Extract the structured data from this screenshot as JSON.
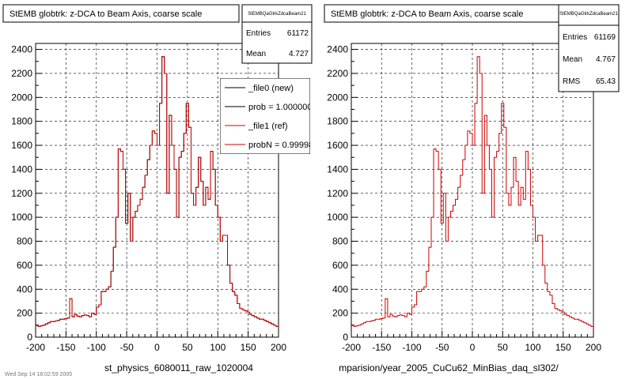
{
  "footer": "Wed Sep 14 18:02:59 2005",
  "chart_data": [
    {
      "type": "histogram",
      "title": "StEMB globtrk: z-DCA to Beam Axis, coarse scale",
      "xlabel": "st_physics_6080011_raw_1020004",
      "xlim": [
        -200,
        200
      ],
      "ylim": [
        0,
        2450
      ],
      "xticks": [
        -200,
        -150,
        -100,
        -50,
        0,
        50,
        100,
        150,
        200
      ],
      "yticks": [
        0,
        200,
        400,
        600,
        800,
        1000,
        1200,
        1400,
        1600,
        1800,
        2000,
        2200,
        2400
      ],
      "grid": true,
      "stats": {
        "name": "StEMBQaGtrkZdcaBeam21",
        "rows": [
          {
            "label": "Entries",
            "value": "61172"
          },
          {
            "label": "Mean",
            "value": "4.727"
          }
        ]
      },
      "legend": {
        "placement": "top-right",
        "entries": [
          {
            "label": "_file0 (new)",
            "color": "#000000"
          },
          {
            "label": "prob = 1.000000",
            "color": "#000000"
          },
          {
            "label": "_file1 (ref)",
            "color": "#cc0000"
          },
          {
            "label": "probN = 0.99998",
            "color": "#cc0000"
          }
        ]
      },
      "series": [
        {
          "color": "#000000",
          "width": 1,
          "values": [
            100,
            90,
            95,
            100,
            110,
            120,
            130,
            130,
            135,
            140,
            150,
            150,
            155,
            160,
            320,
            170,
            190,
            175,
            170,
            180,
            185,
            180,
            170,
            200,
            190,
            250,
            270,
            380,
            380,
            400,
            420,
            550,
            750,
            1000,
            1570,
            1550,
            1400,
            950,
            1200,
            800,
            1000,
            1050,
            1100,
            1150,
            1250,
            1350,
            1480,
            1600,
            1720,
            1700,
            1600,
            1950,
            2340,
            2200,
            1200,
            1850,
            1600,
            1400,
            1000,
            1500,
            1550,
            1700,
            1950,
            1750,
            1200,
            1100,
            1250,
            1500,
            1300,
            1100,
            1250,
            1150,
            1550,
            1400,
            1100,
            1000,
            800,
            850,
            850,
            600,
            450,
            380,
            350,
            280,
            240,
            230,
            220,
            210,
            190,
            180,
            170,
            160,
            150,
            150,
            140,
            130,
            120,
            110,
            100,
            90
          ]
        },
        {
          "color": "#cc0000",
          "width": 1,
          "values": [
            100,
            90,
            95,
            100,
            110,
            120,
            130,
            130,
            135,
            140,
            150,
            150,
            155,
            160,
            320,
            170,
            190,
            175,
            170,
            180,
            185,
            180,
            170,
            200,
            190,
            250,
            270,
            380,
            380,
            400,
            420,
            550,
            750,
            1000,
            1570,
            1550,
            1400,
            950,
            1200,
            800,
            1000,
            1050,
            1100,
            1150,
            1250,
            1350,
            1480,
            1600,
            1720,
            1700,
            1600,
            1950,
            2340,
            2200,
            1200,
            1850,
            1600,
            1400,
            1000,
            1500,
            1550,
            1700,
            1950,
            1750,
            1200,
            1100,
            1250,
            1500,
            1300,
            1100,
            1250,
            1150,
            1550,
            1400,
            1100,
            1000,
            800,
            850,
            850,
            600,
            450,
            380,
            350,
            280,
            240,
            230,
            220,
            210,
            190,
            180,
            170,
            160,
            150,
            150,
            140,
            130,
            120,
            110,
            100,
            90
          ]
        }
      ]
    },
    {
      "type": "histogram",
      "title": "StEMB globtrk: z-DCA to Beam Axis, coarse scale",
      "xlabel": "mparision/year_2005_CuCu62_MinBias_daq_sl302/",
      "xlim": [
        -200,
        200
      ],
      "ylim": [
        0,
        2450
      ],
      "xticks": [
        -200,
        -150,
        -100,
        -50,
        0,
        50,
        100,
        150,
        200
      ],
      "yticks": [
        0,
        200,
        400,
        600,
        800,
        1000,
        1200,
        1400,
        1600,
        1800,
        2000,
        2200,
        2400
      ],
      "grid": true,
      "stats": {
        "name": "StEMBQaGtrkZdcaBeam21",
        "rows": [
          {
            "label": "Entries",
            "value": "61169"
          },
          {
            "label": "Mean",
            "value": "4.767"
          },
          {
            "label": "RMS",
            "value": "65.43"
          }
        ]
      },
      "legend": null,
      "series": [
        {
          "color": "#cc0000",
          "width": 1,
          "values": [
            100,
            90,
            95,
            100,
            110,
            120,
            130,
            130,
            135,
            140,
            150,
            150,
            155,
            160,
            320,
            170,
            190,
            175,
            170,
            180,
            185,
            180,
            170,
            200,
            190,
            250,
            270,
            380,
            380,
            400,
            420,
            550,
            750,
            1000,
            1570,
            1550,
            1400,
            950,
            1200,
            800,
            1000,
            1050,
            1100,
            1150,
            1250,
            1350,
            1480,
            1600,
            1720,
            1700,
            1600,
            1950,
            2340,
            2200,
            1200,
            1850,
            1600,
            1400,
            1000,
            1500,
            1550,
            1700,
            1950,
            1750,
            1200,
            1100,
            1250,
            1500,
            1300,
            1100,
            1250,
            1150,
            1550,
            1400,
            1100,
            1000,
            800,
            850,
            850,
            600,
            450,
            380,
            350,
            280,
            240,
            230,
            220,
            210,
            190,
            180,
            170,
            160,
            150,
            150,
            140,
            130,
            120,
            110,
            100,
            90
          ]
        }
      ]
    }
  ]
}
